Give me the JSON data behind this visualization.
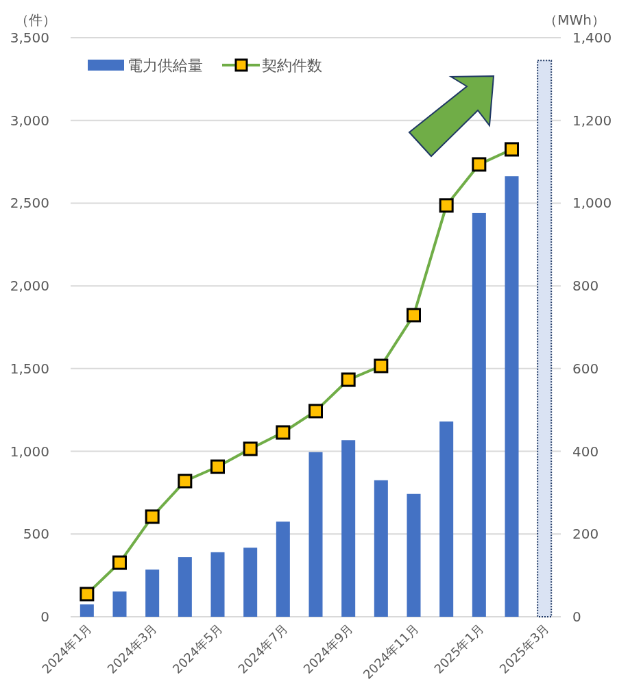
{
  "chart_data": {
    "type": "bar",
    "ylabel": "（件）",
    "y2label": "（MWh）",
    "categories": [
      "2024年1月",
      null,
      "2024年3月",
      null,
      "2024年5月",
      null,
      "2024年7月",
      null,
      "2024年9月",
      null,
      "2024年11月",
      null,
      "2025年1月",
      null,
      "2025年3月"
    ],
    "series": [
      {
        "name": "電力供給量",
        "axis": "y2",
        "color": "#4472c4",
        "values": [
          30,
          61,
          114,
          144,
          156,
          167,
          230,
          398,
          427,
          330,
          297,
          472,
          976,
          1065,
          null
        ]
      },
      {
        "axis": "y2",
        "color": "#dae3f3",
        "line_style": "dotted",
        "values": [
          null,
          null,
          null,
          null,
          null,
          null,
          null,
          null,
          null,
          null,
          null,
          null,
          null,
          null,
          1345
        ]
      },
      {
        "name": "契約件数",
        "type": "line",
        "marker": "square",
        "color": "#70ad47",
        "values": [
          137,
          327,
          605,
          820,
          907,
          1015,
          1114,
          1243,
          1433,
          1516,
          1823,
          2486,
          2734,
          2825,
          null
        ]
      }
    ],
    "ylim": [
      0,
      3500
    ],
    "yticks": [
      0,
      {
        "value": 500,
        "label": "500"
      },
      {
        "value": 1000,
        "label": "1,000"
      },
      {
        "value": 1500,
        "label": "1,500"
      },
      {
        "value": 2000,
        "label": "2,000"
      },
      {
        "value": 2500,
        "label": "2,500"
      },
      {
        "value": 3000,
        "label": "3,000"
      },
      {
        "value": 3500,
        "label": "3,500"
      }
    ],
    "y2lim": [
      0,
      1400
    ],
    "y2ticks": [
      0,
      200,
      400,
      600,
      800,
      {
        "value": 1000,
        "label": "1,000"
      },
      {
        "value": 1200,
        "label": "1,200"
      },
      {
        "value": 1400,
        "label": "1,400"
      }
    ],
    "grid": "y",
    "legend": "top left"
  }
}
